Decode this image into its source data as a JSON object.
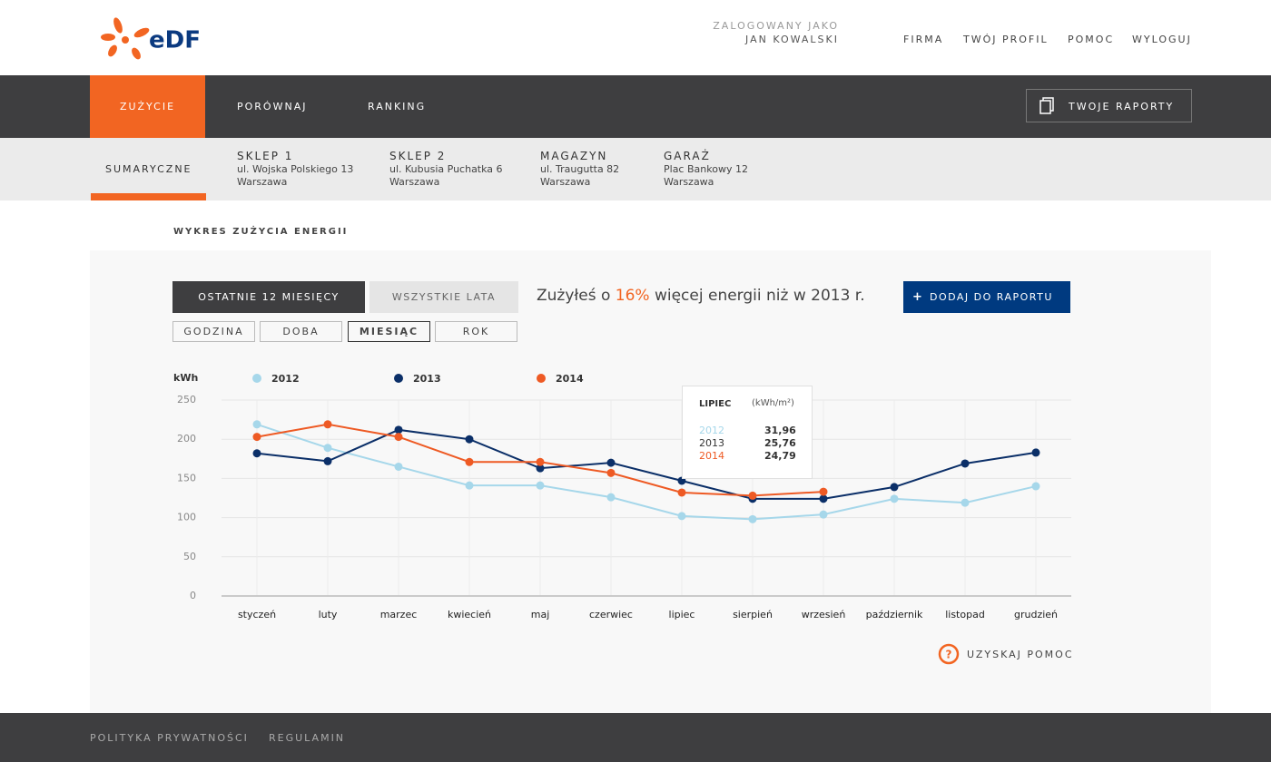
{
  "header": {
    "logo": "eDF",
    "logged_label": "ZALOGOWANY JAKO",
    "user": "JAN KOWALSKI",
    "links": [
      "FIRMA",
      "TWÓJ PROFIL",
      "POMOC",
      "WYLOGUJ"
    ]
  },
  "nav": {
    "tabs": [
      "ZUŻYCIE",
      "PORÓWNAJ",
      "RANKING"
    ],
    "reports": "TWOJE RAPORTY"
  },
  "subnav": {
    "summary": "SUMARYCZNE",
    "places": [
      {
        "name": "SKLEP 1",
        "street": "ul. Wojska Polskiego 13",
        "city": "Warszawa"
      },
      {
        "name": "SKLEP 2",
        "street": "ul. Kubusia Puchatka 6",
        "city": "Warszawa"
      },
      {
        "name": "MAGAZYN",
        "street": "ul. Traugutta 82",
        "city": "Warszawa"
      },
      {
        "name": "GARAŻ",
        "street": "Plac Bankowy 12",
        "city": "Warszawa"
      }
    ]
  },
  "section_title": "WYKRES ZUŻYCIA ENERGII",
  "range_buttons": [
    "OSTATNIE 12 MIESIĘCY",
    "WSZYSTKIE LATA"
  ],
  "message": {
    "before": "Zużyłeś o ",
    "highlight": "16%",
    "after": " więcej energii niż w 2013 r."
  },
  "add_button": "DODAJ DO RAPORTU",
  "period_buttons": [
    "GODZINA",
    "DOBA",
    "MIESIĄC",
    "ROK"
  ],
  "tooltip": {
    "title": "LIPIEC",
    "unit": "(kWh/m²)",
    "rows": [
      {
        "year": "2012",
        "value": "31,96"
      },
      {
        "year": "2013",
        "value": "25,76"
      },
      {
        "year": "2014",
        "value": "24,79"
      }
    ]
  },
  "help": "UZYSKAJ POMOC",
  "footer": [
    "POLITYKA PRYWATNOŚCI",
    "REGULAMIN"
  ],
  "chart_data": {
    "type": "line",
    "y_label": "kWh",
    "categories": [
      "styczeń",
      "luty",
      "marzec",
      "kwiecień",
      "maj",
      "czerwiec",
      "lipiec",
      "sierpień",
      "wrzesień",
      "październik",
      "listopad",
      "grudzień"
    ],
    "series": [
      {
        "name": "2012",
        "color": "#a6d7ea",
        "values": [
          219,
          189,
          165,
          141,
          141,
          126,
          102,
          98,
          104,
          124,
          119,
          140
        ]
      },
      {
        "name": "2013",
        "color": "#0b2f68",
        "values": [
          182,
          172,
          212,
          200,
          163,
          170,
          147,
          124,
          124,
          139,
          169,
          183
        ]
      },
      {
        "name": "2014",
        "color": "#ee5a24",
        "values": [
          203,
          219,
          203,
          171,
          171,
          157,
          132,
          128,
          133,
          null,
          null,
          null
        ]
      }
    ],
    "ylim": [
      0,
      250
    ],
    "yticks": [
      0,
      50,
      100,
      150,
      200,
      250
    ],
    "grid": true
  }
}
